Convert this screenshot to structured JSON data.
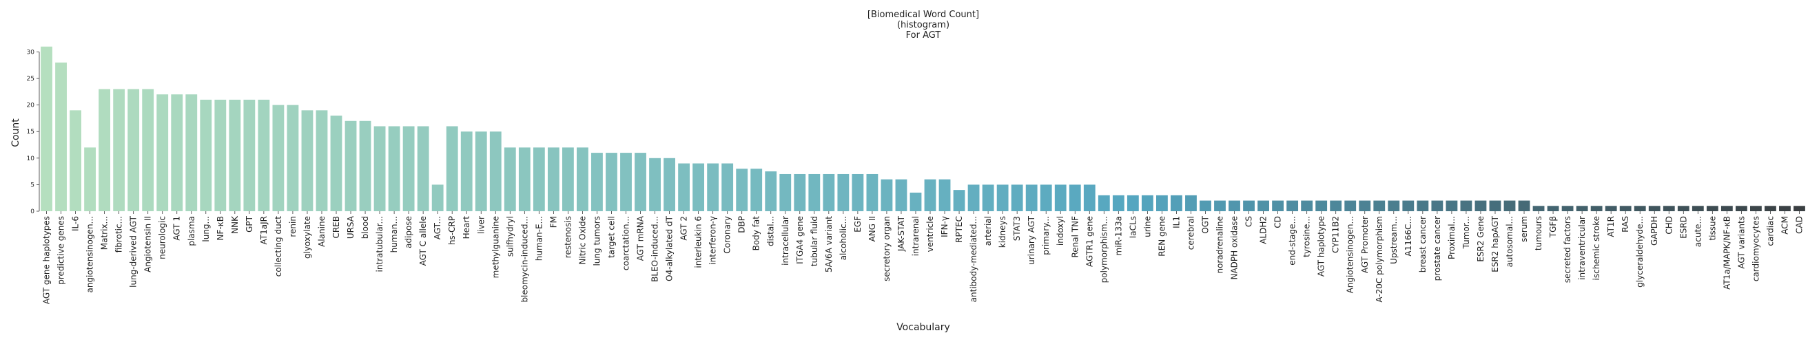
{
  "chart_data": {
    "type": "bar",
    "title_lines": [
      "[Biomedical Word Count]",
      "(histogram)",
      "For AGT"
    ],
    "xlabel": "Vocabulary",
    "ylabel": "Count",
    "ylim": [
      0,
      32
    ],
    "yticks": [
      0,
      5,
      10,
      15,
      20,
      25,
      30
    ],
    "grid": false,
    "palette": {
      "start": "#b5dfbf",
      "mid": "#55a6c0",
      "end": "#3a3f42"
    },
    "categories": [
      "AGT gene haplotypes",
      "predictive genes",
      "IL-6",
      "angiotensinogen...",
      "Matrix...",
      "fibrotic...",
      "lung-derived AGT",
      "Angiotensin II",
      "neurologic",
      "AGT 1",
      "plasma",
      "lung...",
      "NF-κB",
      "NNK",
      "GPT",
      "AT1aJR",
      "collecting duct",
      "renin",
      "glyoxylate",
      "Alanine",
      "CREB",
      "URSA",
      "blood",
      "intratubular...",
      "human...",
      "adipose",
      "AGT C allele",
      "AGT...",
      "hs-CRP",
      "Heart",
      "liver",
      "methylguanine",
      "sulfhydryl",
      "bleomycin-induced...",
      "human-E...",
      "FM",
      "restenosis",
      "Nitric Oxide",
      "lung tumors",
      "target cell",
      "coarctation...",
      "AGT mRNA",
      "BLEO-induced...",
      "O4-alkylated dT",
      "AGT 2",
      "interleukin 6",
      "interferon-γ",
      "Coronary",
      "DBP",
      "Body fat",
      "distal...",
      "intracellular",
      "ITGA4 gene",
      "tubular fluid",
      "5A/6A variant",
      "alcoholic...",
      "EGF",
      "ANG II",
      "secretory organ",
      "JAK-STAT",
      "intrarenal",
      "ventricle",
      "IFN-γ",
      "RPTEC",
      "antibody-mediated...",
      "arterial",
      "kidneys",
      "STAT3",
      "urinary AGT",
      "primary...",
      "indoxyl",
      "Renal TNF",
      "AGTR1 gene",
      "polymorphism...",
      "miR-133a",
      "IaCLs",
      "urine",
      "REN gene",
      "IL1",
      "cerebral",
      "OGT",
      "noradrenaline",
      "NADPH oxidase",
      "CS",
      "ALDH2",
      "CD",
      "end-stage...",
      "tyrosine...",
      "AGT haplotype",
      "CYP11B2",
      "Angiotensinogen...",
      "AGT Promoter",
      "A-20C polymorphism",
      "Upstream...",
      "A1166C...",
      "breast cancer",
      "prostate cancer",
      "Proximal...",
      "Tumor...",
      "ESR2 Gene",
      "ESR2 hapAGT",
      "autosomal...",
      "serum",
      "tumours",
      "TGFβ",
      "secreted factors",
      "intraventricular",
      "ischemic stroke",
      "AT1R",
      "RAS",
      "glyceraldehyde...",
      "GAPDH",
      "CHD",
      "ESRD",
      "acute...",
      "tissue",
      "AT1a/MAPK/NF-κB",
      "AGT variants",
      "cardiomyocytes",
      "cardiac",
      "ACM",
      "CAD"
    ],
    "values": [
      31,
      28,
      19,
      12,
      23,
      23,
      23,
      23,
      22,
      22,
      22,
      21,
      21,
      21,
      21,
      21,
      20,
      20,
      19,
      19,
      18,
      17,
      17,
      16,
      16,
      16,
      16,
      5,
      16,
      15,
      15,
      15,
      12,
      12,
      12,
      12,
      12,
      12,
      11,
      11,
      11,
      11,
      10,
      10,
      9,
      9,
      9,
      9,
      8,
      8,
      7.5,
      7,
      7,
      7,
      7,
      7,
      7,
      7,
      6,
      6,
      3.5,
      6,
      6,
      4,
      5,
      5,
      5,
      5,
      5,
      5,
      5,
      5,
      5,
      3,
      3,
      3,
      3,
      3,
      3,
      3,
      2,
      2,
      2,
      2,
      2,
      2,
      2,
      2,
      2,
      2,
      2,
      2,
      2,
      2,
      2,
      2,
      2,
      2,
      2,
      2,
      2,
      2,
      2,
      1,
      1,
      1,
      1,
      1,
      1,
      1,
      1,
      1,
      1,
      1,
      1,
      1,
      1,
      1,
      1,
      1,
      1,
      1
    ]
  }
}
